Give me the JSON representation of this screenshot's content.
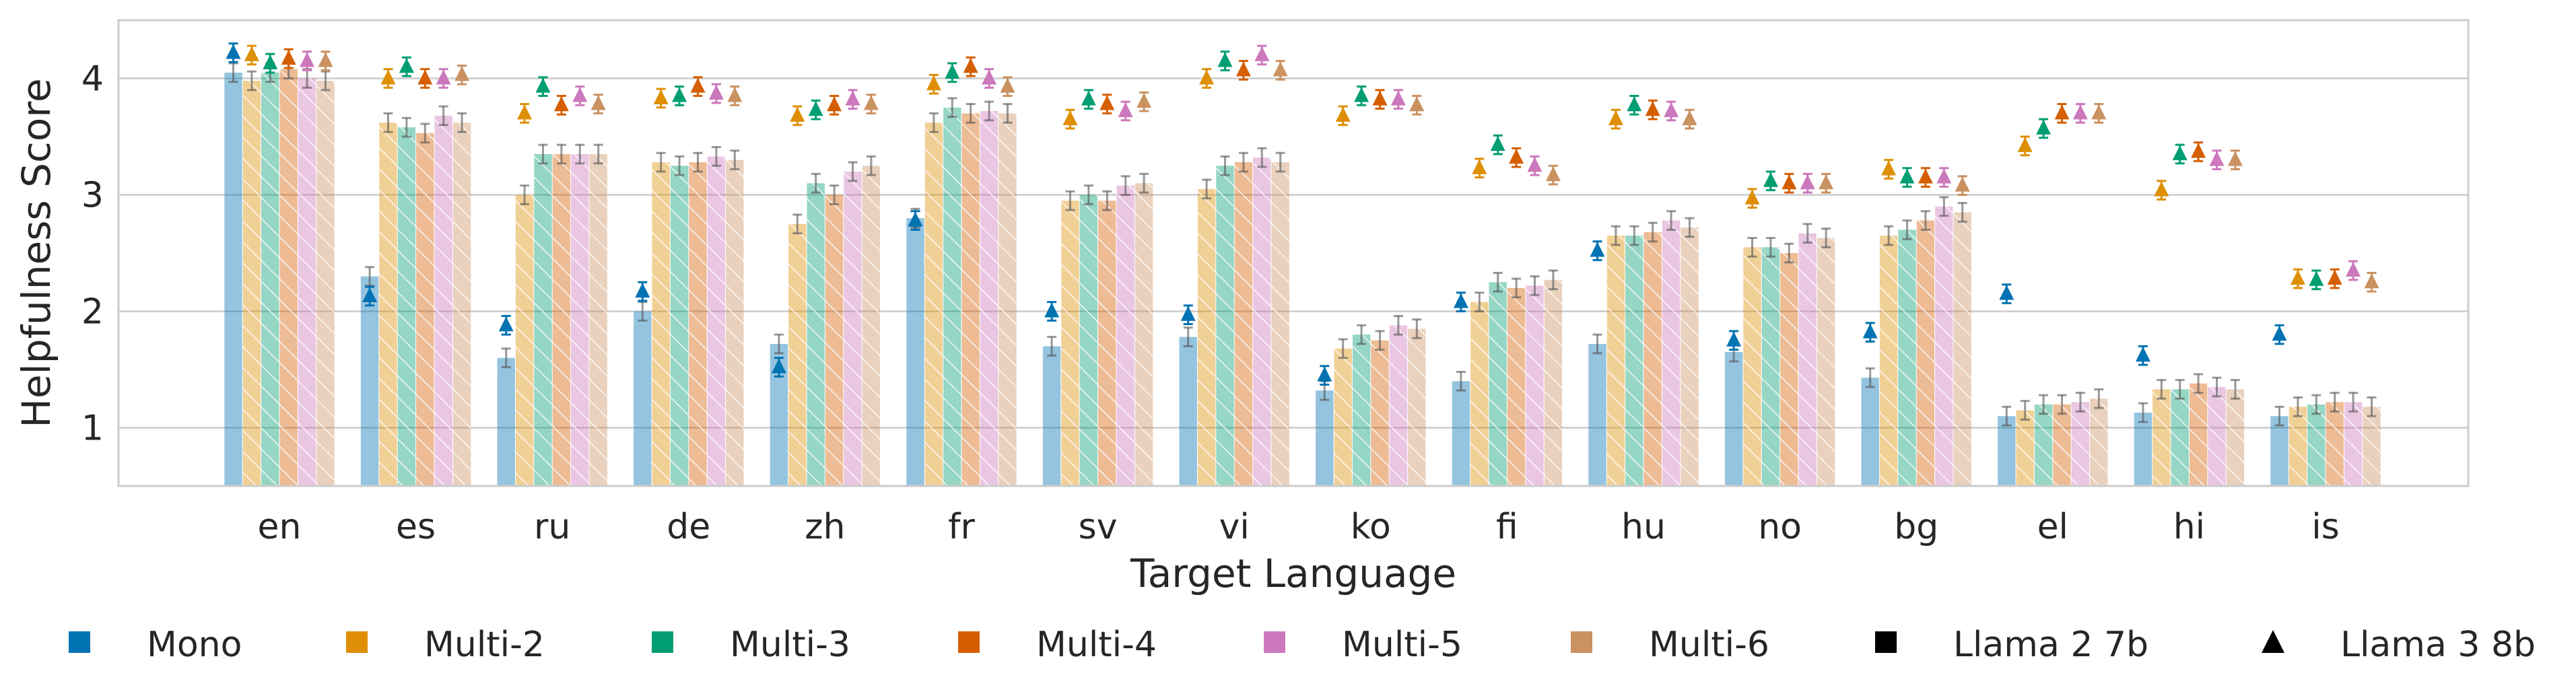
{
  "chart_data": {
    "type": "bar",
    "title": "",
    "xlabel": "Target Language",
    "ylabel": "Helpfulness Score",
    "ylim": [
      0.5,
      4.5
    ],
    "yticks": [
      1,
      2,
      3,
      4
    ],
    "grid": true,
    "legend_position": "bottom",
    "categories": [
      "en",
      "es",
      "ru",
      "de",
      "zh",
      "fr",
      "sv",
      "vi",
      "ko",
      "fi",
      "hu",
      "no",
      "bg",
      "el",
      "hi",
      "is"
    ],
    "series": [
      {
        "name": "Mono",
        "color": "#0173b2",
        "llama2": [
          4.05,
          2.3,
          1.6,
          2.0,
          1.72,
          2.8,
          1.7,
          1.78,
          1.32,
          1.4,
          1.72,
          1.65,
          1.43,
          1.1,
          1.13,
          1.1
        ],
        "llama3": [
          4.22,
          2.13,
          1.88,
          2.17,
          1.52,
          2.78,
          2.0,
          1.97,
          1.45,
          2.08,
          2.52,
          1.75,
          1.82,
          2.15,
          1.62,
          1.8
        ]
      },
      {
        "name": "Multi-2",
        "color": "#de8f05",
        "llama2": [
          3.98,
          3.62,
          3.0,
          3.28,
          2.75,
          3.62,
          2.95,
          3.05,
          1.68,
          2.08,
          2.65,
          2.55,
          2.65,
          1.15,
          1.33,
          1.18
        ],
        "llama3": [
          4.2,
          4.0,
          3.7,
          3.83,
          3.68,
          3.95,
          3.65,
          4.0,
          3.68,
          3.23,
          3.65,
          2.97,
          3.22,
          3.42,
          3.04,
          2.28
        ]
      },
      {
        "name": "Multi-3",
        "color": "#029e73",
        "llama2": [
          4.05,
          3.58,
          3.35,
          3.25,
          3.1,
          3.75,
          3.0,
          3.25,
          1.8,
          2.25,
          2.65,
          2.55,
          2.7,
          1.2,
          1.33,
          1.2
        ],
        "llama3": [
          4.13,
          4.1,
          3.93,
          3.85,
          3.73,
          4.05,
          3.82,
          4.15,
          3.85,
          3.43,
          3.77,
          3.12,
          3.15,
          3.57,
          3.35,
          2.27
        ]
      },
      {
        "name": "Multi-4",
        "color": "#d55e00",
        "llama2": [
          4.08,
          3.53,
          3.35,
          3.28,
          3.0,
          3.7,
          2.95,
          3.28,
          1.75,
          2.2,
          2.68,
          2.5,
          2.78,
          1.2,
          1.38,
          1.22
        ],
        "llama3": [
          4.17,
          4.0,
          3.77,
          3.93,
          3.77,
          4.1,
          3.78,
          4.07,
          3.82,
          3.32,
          3.73,
          3.1,
          3.15,
          3.7,
          3.37,
          2.28
        ]
      },
      {
        "name": "Multi-5",
        "color": "#cc78bc",
        "llama2": [
          4.0,
          3.68,
          3.35,
          3.33,
          3.2,
          3.72,
          3.08,
          3.32,
          1.88,
          2.22,
          2.78,
          2.67,
          2.9,
          1.22,
          1.35,
          1.22
        ],
        "llama3": [
          4.15,
          4.0,
          3.85,
          3.87,
          3.82,
          4.0,
          3.72,
          4.2,
          3.82,
          3.25,
          3.72,
          3.1,
          3.15,
          3.7,
          3.3,
          2.35
        ]
      },
      {
        "name": "Multi-6",
        "color": "#ca9161",
        "llama2": [
          3.98,
          3.62,
          3.35,
          3.3,
          3.25,
          3.7,
          3.1,
          3.28,
          1.85,
          2.27,
          2.72,
          2.63,
          2.85,
          1.25,
          1.33,
          1.18
        ],
        "llama3": [
          4.15,
          4.03,
          3.78,
          3.85,
          3.78,
          3.93,
          3.8,
          4.07,
          3.77,
          3.17,
          3.65,
          3.1,
          3.08,
          3.7,
          3.3,
          2.25
        ]
      }
    ],
    "error_margin": 0.08,
    "legend": [
      {
        "label": "Mono",
        "marker": "square",
        "color": "#0173b2"
      },
      {
        "label": "Multi-2",
        "marker": "square",
        "color": "#de8f05"
      },
      {
        "label": "Multi-3",
        "marker": "square",
        "color": "#029e73"
      },
      {
        "label": "Multi-4",
        "marker": "square",
        "color": "#d55e00"
      },
      {
        "label": "Multi-5",
        "marker": "square",
        "color": "#cc78bc"
      },
      {
        "label": "Multi-6",
        "marker": "square",
        "color": "#ca9161"
      },
      {
        "label": "Llama 2 7b",
        "marker": "square",
        "color": "#000000"
      },
      {
        "label": "Llama 3 8b",
        "marker": "triangle",
        "color": "#000000"
      }
    ]
  }
}
